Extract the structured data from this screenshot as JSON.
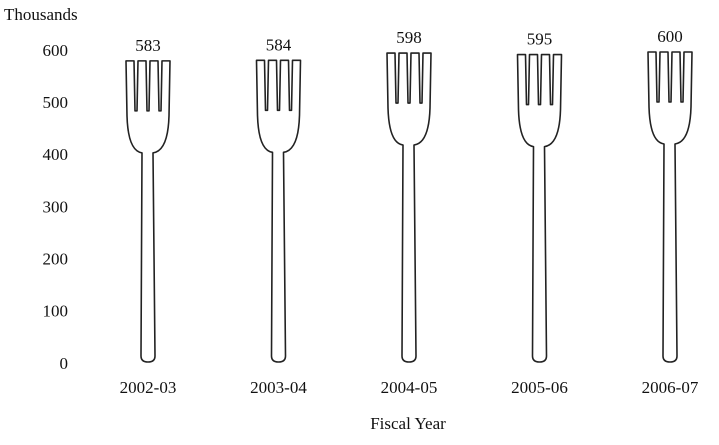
{
  "chart_data": {
    "type": "bar",
    "y_label": "Thousands",
    "x_label": "Fiscal Year",
    "categories": [
      "2002-03",
      "2003-04",
      "2004-05",
      "2005-06",
      "2006-07"
    ],
    "values": [
      583,
      584,
      598,
      595,
      600
    ],
    "ylim": [
      0,
      600
    ],
    "yticks": [
      0,
      100,
      200,
      300,
      400,
      500,
      600
    ],
    "grid": false
  }
}
